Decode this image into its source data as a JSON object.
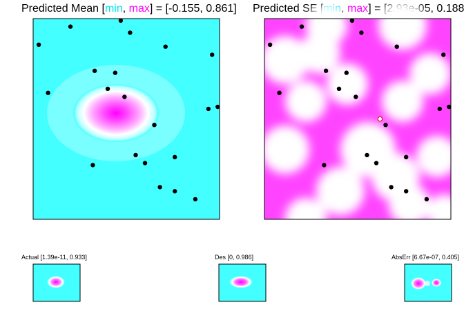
{
  "colors": {
    "low": "#44ffff",
    "mid": "#ffffff",
    "high": "#ff00ff",
    "point": "#000000",
    "open_point": "#cc0000"
  },
  "chart_data": [
    {
      "type": "heatmap",
      "title": {
        "prefix": "Predicted Mean [",
        "min_word": "min",
        "sep": ", ",
        "max_word": "max",
        "suffix": "] = [-0.155, 0.861]"
      },
      "value_range": [
        -0.155,
        0.861
      ],
      "points": [
        [
          0.03,
          0.87
        ],
        [
          0.2,
          0.96
        ],
        [
          0.33,
          0.74
        ],
        [
          0.4,
          0.65
        ],
        [
          0.49,
          0.61
        ],
        [
          0.55,
          0.32
        ],
        [
          0.6,
          0.28
        ],
        [
          0.76,
          0.31
        ],
        [
          0.94,
          0.55
        ],
        [
          0.96,
          0.82
        ],
        [
          0.99,
          0.56
        ],
        [
          0.32,
          0.27
        ],
        [
          0.08,
          0.63
        ],
        [
          0.68,
          0.16
        ],
        [
          0.65,
          0.47
        ],
        [
          0.44,
          0.73
        ],
        [
          0.76,
          0.14
        ],
        [
          0.71,
          0.86
        ],
        [
          0.52,
          0.93
        ],
        [
          0.87,
          0.1
        ],
        [
          0.47,
          0.99
        ]
      ]
    },
    {
      "type": "heatmap",
      "title": {
        "prefix": "Predicted SE [",
        "min_word": "min",
        "sep": ", ",
        "max_word": "max",
        "suffix": "] = [2.93e-05, 0.188]"
      },
      "value_range": [
        2.93e-05,
        0.188
      ],
      "points": [
        [
          0.03,
          0.87
        ],
        [
          0.2,
          0.96
        ],
        [
          0.33,
          0.74
        ],
        [
          0.4,
          0.65
        ],
        [
          0.49,
          0.61
        ],
        [
          0.55,
          0.32
        ],
        [
          0.6,
          0.28
        ],
        [
          0.76,
          0.31
        ],
        [
          0.94,
          0.55
        ],
        [
          0.96,
          0.82
        ],
        [
          0.99,
          0.56
        ],
        [
          0.32,
          0.27
        ],
        [
          0.08,
          0.63
        ],
        [
          0.68,
          0.16
        ],
        [
          0.65,
          0.47
        ],
        [
          0.44,
          0.73
        ],
        [
          0.76,
          0.14
        ],
        [
          0.71,
          0.86
        ],
        [
          0.52,
          0.93
        ],
        [
          0.87,
          0.1
        ],
        [
          0.47,
          0.99
        ]
      ],
      "candidate": [
        0.62,
        0.5
      ]
    },
    {
      "type": "heatmap",
      "title": "Actual [1.39e-11, 0.933]",
      "value_range": [
        1.39e-11,
        0.933
      ]
    },
    {
      "type": "heatmap",
      "title": "Des [0, 0.986]",
      "value_range": [
        0,
        0.986
      ]
    },
    {
      "type": "heatmap",
      "title": "AbsErr [6.67e-07, 0.405]",
      "value_range": [
        6.67e-07,
        0.405
      ]
    }
  ]
}
